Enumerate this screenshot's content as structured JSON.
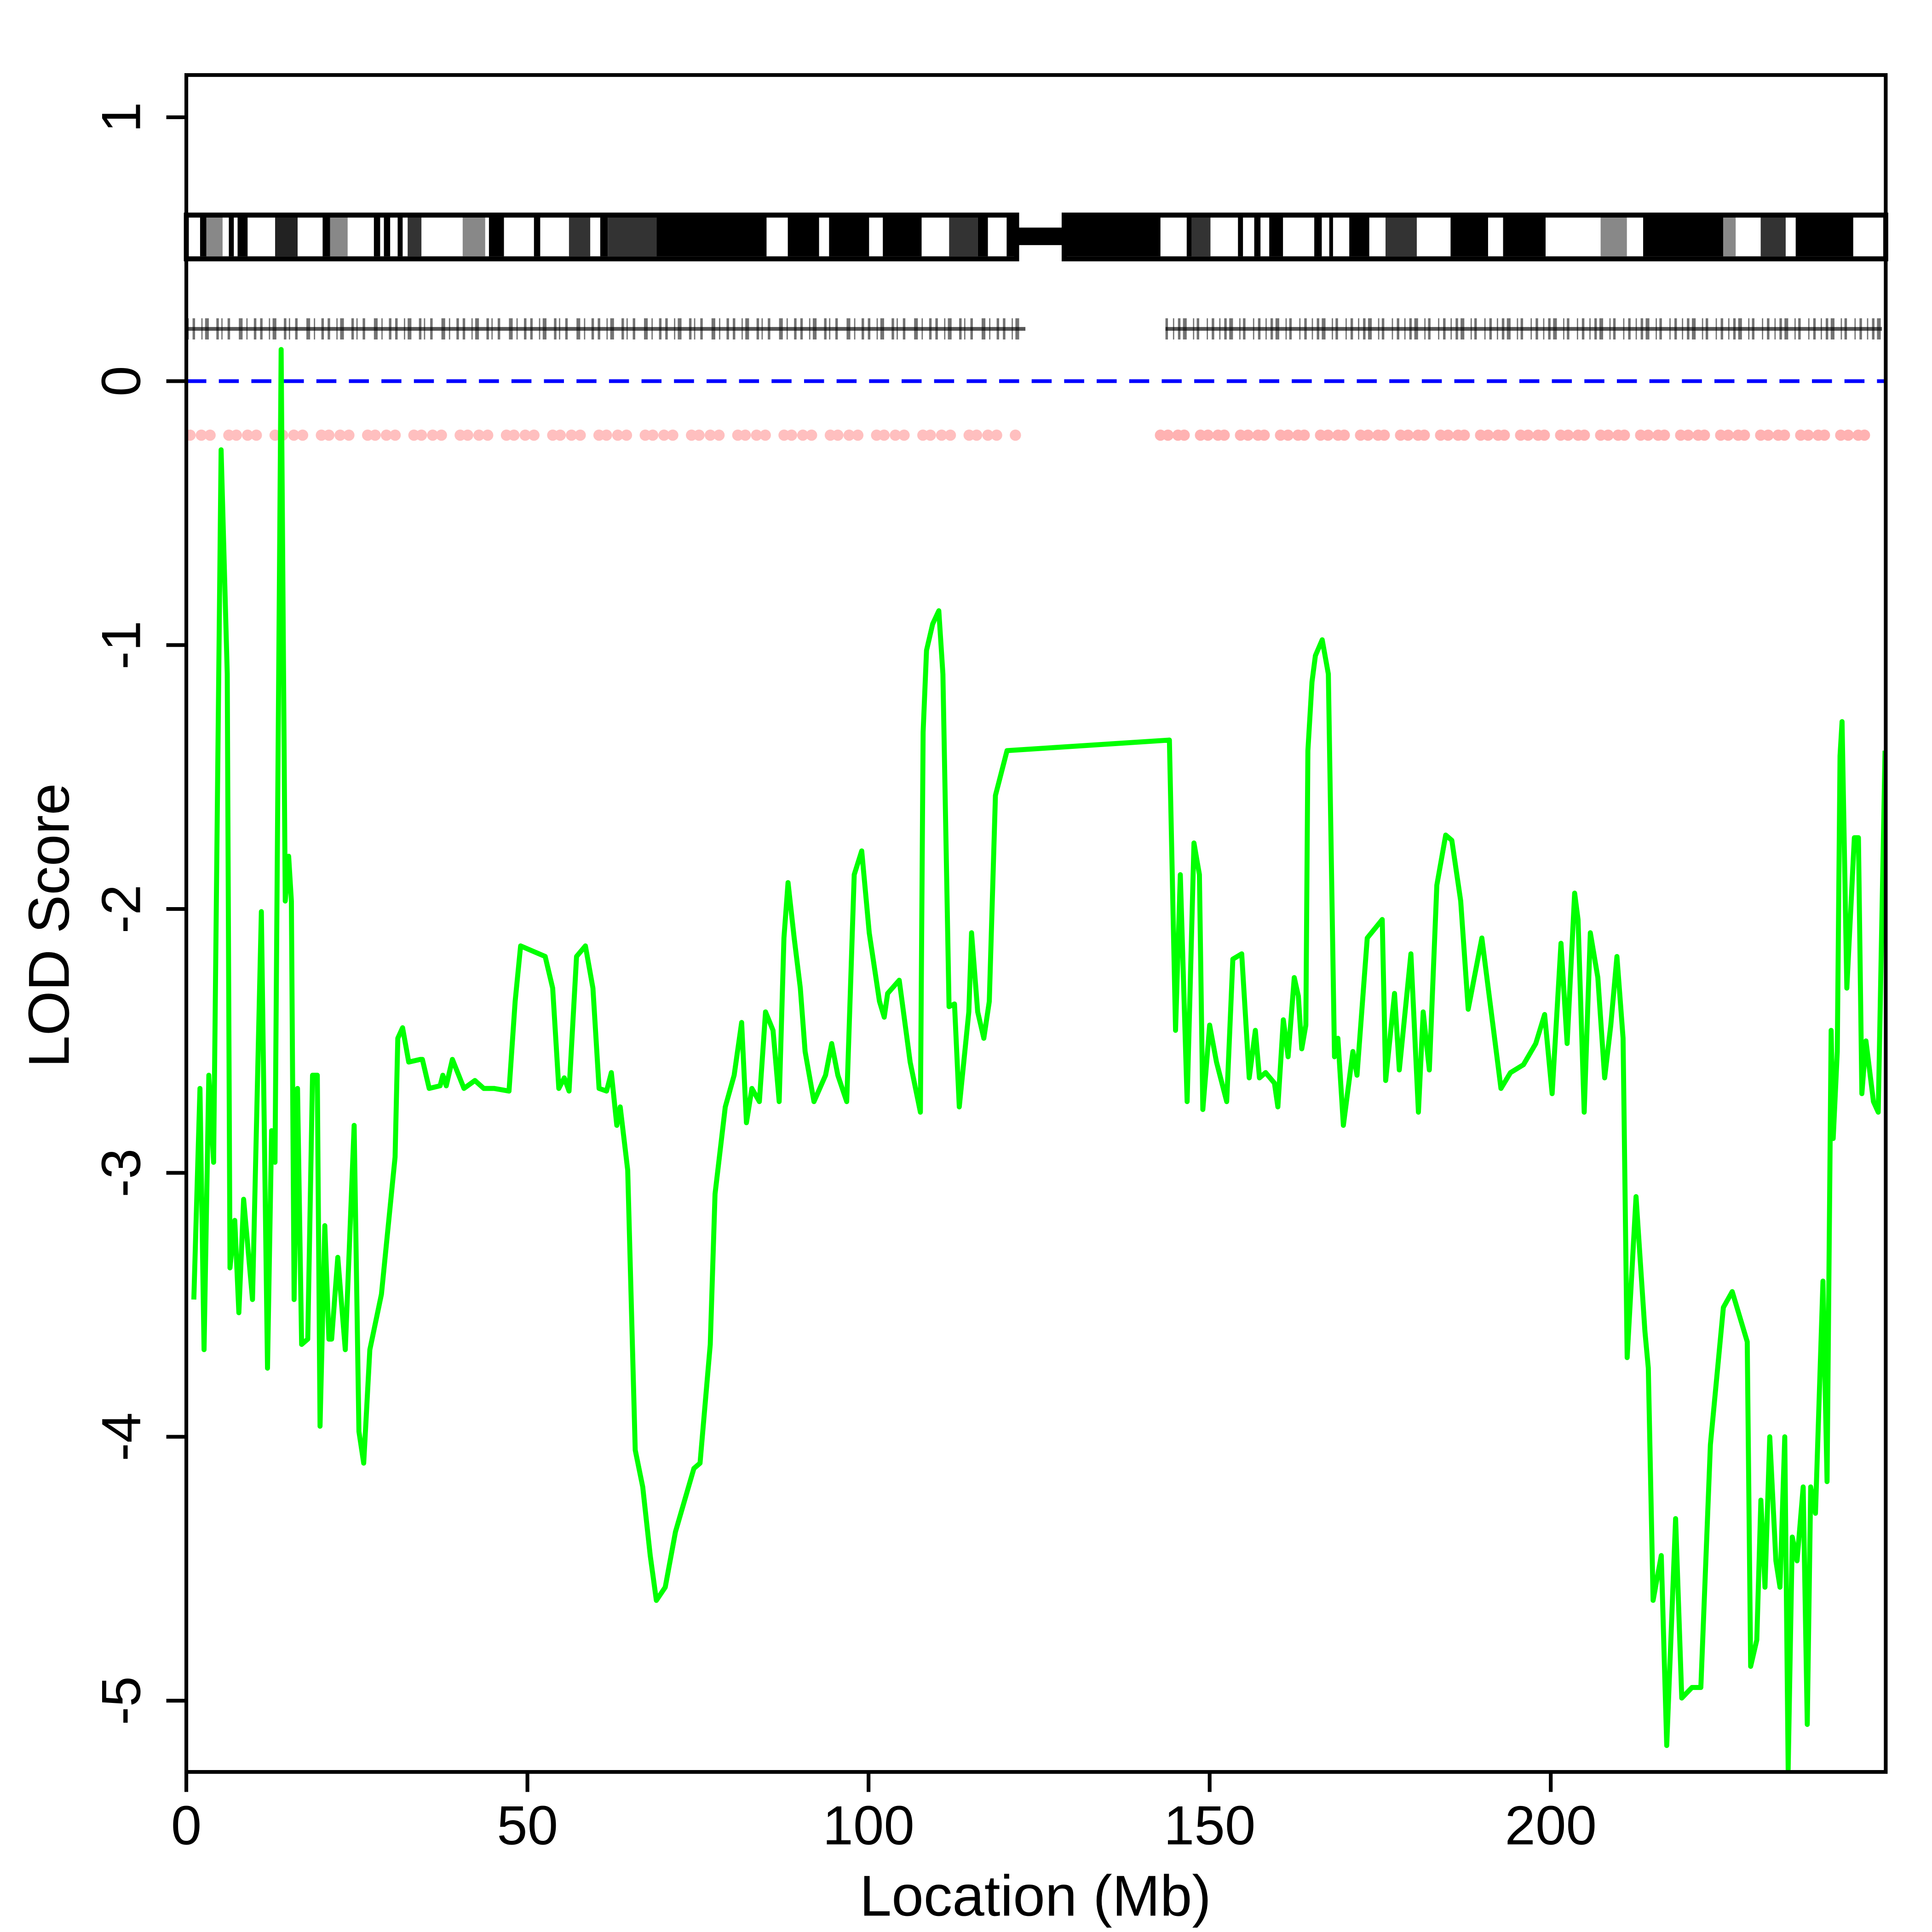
{
  "chart_data": {
    "type": "line",
    "xlabel": "Location (Mb)",
    "ylabel": "LOD Score",
    "xlim": [
      0,
      249.1
    ],
    "ylim": [
      -5.27,
      1.16
    ],
    "xticks": [
      0,
      50,
      100,
      150,
      200
    ],
    "yticks": [
      -5,
      -4,
      -3,
      -2,
      -1,
      0,
      1
    ],
    "color": "#00ff00",
    "x": [
      1.1,
      2.0,
      2.6,
      3.3,
      4.0,
      5.1,
      6.0,
      6.4,
      7.1,
      7.7,
      8.4,
      9.7,
      11.0,
      11.9,
      12.5,
      13.0,
      13.9,
      14.5,
      15.0,
      15.4,
      15.8,
      16.3,
      16.9,
      17.8,
      18.5,
      19.2,
      19.6,
      20.3,
      20.9,
      21.3,
      22.2,
      23.3,
      24.6,
      25.3,
      26.0,
      26.9,
      28.6,
      30.6,
      31.0,
      31.7,
      32.6,
      34.3,
      34.6,
      35.6,
      37.2,
      37.6,
      38.1,
      39.0,
      40.7,
      42.3,
      43.6,
      45.1,
      47.3,
      48.2,
      49.0,
      52.6,
      53.7,
      54.6,
      55.4,
      56.1,
      57.2,
      58.5,
      59.6,
      60.5,
      61.6,
      62.3,
      63.1,
      63.6,
      64.7,
      65.8,
      66.9,
      68.0,
      68.9,
      70.2,
      71.7,
      74.4,
      75.3,
      76.8,
      77.5,
      79.0,
      80.3,
      81.4,
      82.1,
      82.9,
      84.0,
      84.9,
      86.0,
      86.9,
      87.6,
      88.2,
      89.1,
      90.0,
      90.7,
      92.0,
      93.7,
      94.6,
      95.5,
      96.8,
      97.9,
      99.0,
      100.1,
      101.6,
      102.3,
      102.8,
      104.5,
      106.1,
      107.6,
      108.0,
      108.5,
      109.4,
      110.3,
      110.9,
      111.8,
      112.6,
      113.3,
      114.7,
      115.1,
      116.0,
      116.9,
      117.7,
      118.6,
      120.3,
      144.1,
      145.0,
      145.7,
      146.7,
      147.7,
      148.5,
      149.0,
      150.0,
      151.0,
      152.5,
      153.4,
      154.7,
      155.8,
      156.7,
      157.3,
      158.2,
      159.5,
      160.0,
      160.8,
      161.5,
      162.4,
      163.0,
      163.5,
      164.1,
      164.4,
      165.0,
      165.5,
      166.5,
      167.4,
      168.3,
      168.8,
      169.6,
      171.0,
      171.6,
      173.1,
      175.3,
      175.8,
      177.1,
      177.8,
      179.5,
      180.6,
      181.3,
      182.2,
      183.3,
      184.6,
      185.5,
      186.8,
      187.9,
      189.9,
      192.7,
      194.1,
      196.0,
      197.8,
      199.1,
      200.2,
      201.5,
      202.4,
      203.5,
      204.0,
      204.9,
      205.8,
      206.9,
      207.9,
      208.8,
      209.7,
      210.6,
      211.2,
      212.5,
      213.8,
      214.3,
      215.0,
      216.2,
      217.0,
      218.3,
      219.2,
      220.7,
      222.0,
      223.4,
      225.3,
      226.6,
      228.8,
      229.3,
      230.2,
      230.8,
      231.4,
      232.1,
      233.0,
      233.6,
      234.3,
      234.8,
      235.4,
      236.1,
      237.0,
      237.6,
      238.1,
      238.8,
      239.9,
      240.5,
      241.1,
      241.4,
      242.0,
      242.4,
      242.7,
      243.4,
      244.5,
      245.1,
      245.6,
      246.2,
      247.3,
      248.0,
      249.0
    ],
    "y": [
      -3.48,
      -2.68,
      -3.67,
      -2.63,
      -2.96,
      -0.26,
      -1.11,
      -3.36,
      -3.18,
      -3.53,
      -3.1,
      -3.48,
      -2.01,
      -3.74,
      -2.84,
      -2.96,
      0.12,
      -1.97,
      -1.8,
      -1.97,
      -3.48,
      -2.68,
      -3.65,
      -3.63,
      -2.63,
      -2.63,
      -3.96,
      -3.2,
      -3.63,
      -3.63,
      -3.32,
      -3.67,
      -2.82,
      -3.98,
      -4.1,
      -3.67,
      -3.46,
      -2.94,
      -2.49,
      -2.45,
      -2.58,
      -2.57,
      -2.57,
      -2.68,
      -2.67,
      -2.63,
      -2.67,
      -2.57,
      -2.68,
      -2.65,
      -2.68,
      -2.68,
      -2.69,
      -2.35,
      -2.14,
      -2.18,
      -2.3,
      -2.68,
      -2.64,
      -2.69,
      -2.18,
      -2.14,
      -2.3,
      -2.68,
      -2.69,
      -2.62,
      -2.82,
      -2.75,
      -2.99,
      -4.05,
      -4.19,
      -4.45,
      -4.62,
      -4.57,
      -4.36,
      -4.12,
      -4.1,
      -3.65,
      -3.08,
      -2.75,
      -2.63,
      -2.43,
      -2.81,
      -2.68,
      -2.73,
      -2.39,
      -2.46,
      -2.73,
      -2.11,
      -1.9,
      -2.11,
      -2.3,
      -2.54,
      -2.73,
      -2.63,
      -2.51,
      -2.63,
      -2.73,
      -1.87,
      -1.78,
      -2.09,
      -2.35,
      -2.41,
      -2.32,
      -2.27,
      -2.58,
      -2.77,
      -1.33,
      -1.02,
      -0.92,
      -0.87,
      -1.11,
      -2.37,
      -2.36,
      -2.75,
      -2.39,
      -2.09,
      -2.39,
      -2.49,
      -2.35,
      -1.57,
      -1.4,
      -1.36,
      -2.46,
      -1.87,
      -2.73,
      -1.75,
      -1.87,
      -2.76,
      -2.44,
      -2.58,
      -2.73,
      -2.19,
      -2.17,
      -2.64,
      -2.46,
      -2.64,
      -2.62,
      -2.66,
      -2.75,
      -2.42,
      -2.56,
      -2.26,
      -2.33,
      -2.53,
      -2.44,
      -1.4,
      -1.14,
      -1.04,
      -0.98,
      -1.11,
      -2.56,
      -2.49,
      -2.82,
      -2.54,
      -2.63,
      -2.11,
      -2.04,
      -2.65,
      -2.32,
      -2.61,
      -2.17,
      -2.77,
      -2.39,
      -2.61,
      -1.91,
      -1.72,
      -1.74,
      -1.97,
      -2.38,
      -2.11,
      -2.68,
      -2.62,
      -2.59,
      -2.51,
      -2.4,
      -2.7,
      -2.13,
      -2.51,
      -1.94,
      -2.04,
      -2.77,
      -2.09,
      -2.26,
      -2.64,
      -2.44,
      -2.18,
      -2.49,
      -3.7,
      -3.09,
      -3.6,
      -3.74,
      -4.62,
      -4.45,
      -5.17,
      -4.31,
      -4.99,
      -4.95,
      -4.95,
      -4.03,
      -3.51,
      -3.45,
      -3.64,
      -4.87,
      -4.77,
      -4.24,
      -4.57,
      -4.0,
      -4.47,
      -4.57,
      -4.0,
      -5.26,
      -4.38,
      -4.47,
      -4.19,
      -5.09,
      -4.19,
      -4.29,
      -3.41,
      -4.17,
      -2.46,
      -2.87,
      -2.54,
      -1.42,
      -1.29,
      -2.3,
      -1.73,
      -1.73,
      -2.7,
      -2.5,
      -2.73,
      -2.77,
      -1.4
    ]
  }
}
